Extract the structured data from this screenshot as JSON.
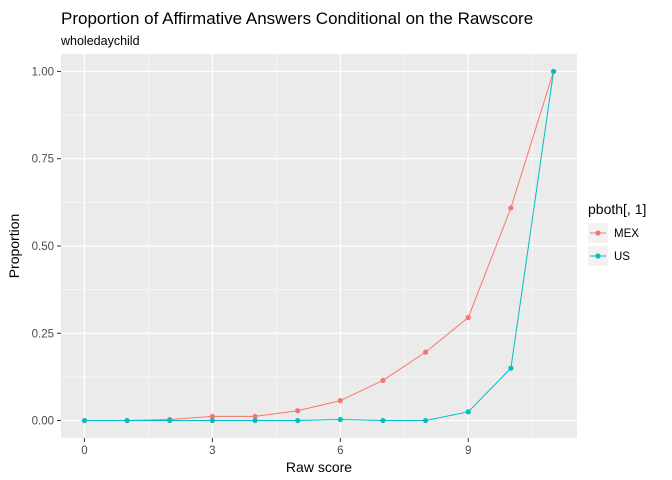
{
  "chart_data": {
    "type": "line",
    "title": "Proportion of Affirmative Answers Conditional on the Rawscore",
    "subtitle": "wholedaychild",
    "xlabel": "Raw score",
    "ylabel": "Proportion",
    "x": [
      0,
      1,
      2,
      3,
      4,
      5,
      6,
      7,
      8,
      9,
      10,
      11
    ],
    "xlim": [
      -0.55,
      11.55
    ],
    "ylim": [
      -0.05,
      1.05
    ],
    "x_ticks": [
      0,
      3,
      6,
      9
    ],
    "x_tick_labels": [
      "0",
      "3",
      "6",
      "9"
    ],
    "y_ticks": [
      0,
      0.25,
      0.5,
      0.75,
      1.0
    ],
    "y_tick_labels": [
      "0.00",
      "0.25",
      "0.50",
      "0.75",
      "1.00"
    ],
    "grid": true,
    "legend_title": "pboth[, 1]",
    "legend_position": "right",
    "series": [
      {
        "name": "MEX",
        "color": "#F8766D",
        "values": [
          0.0,
          0.0,
          0.003,
          0.012,
          0.012,
          0.028,
          0.057,
          0.115,
          0.196,
          0.295,
          0.609,
          1.0
        ]
      },
      {
        "name": "US",
        "color": "#00BFC4",
        "values": [
          0.0,
          0.0,
          0.0,
          0.0,
          0.0,
          0.0,
          0.003,
          0.0,
          0.0,
          0.025,
          0.15,
          1.0
        ]
      }
    ]
  }
}
